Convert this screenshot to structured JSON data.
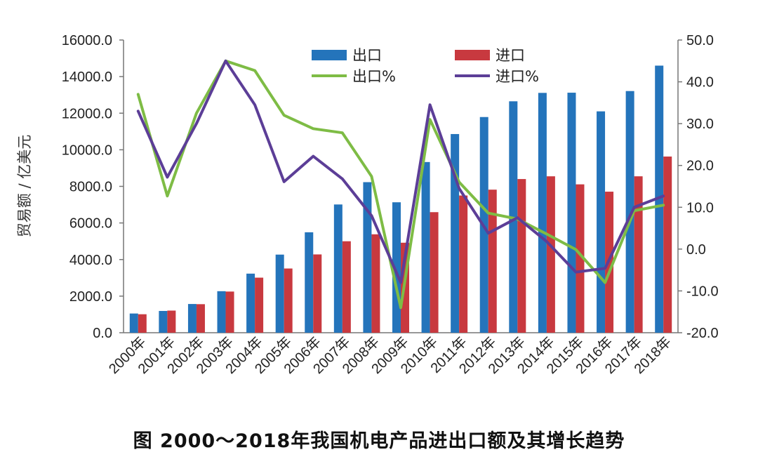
{
  "caption": "图 2000～2018年我国机电产品进出口额及其增长趋势",
  "chart_data": {
    "type": "bar",
    "categories": [
      "2000年",
      "2001年",
      "2002年",
      "2003年",
      "2004年",
      "2005年",
      "2006年",
      "2007年",
      "2008年",
      "2009年",
      "2010年",
      "2011年",
      "2012年",
      "2013年",
      "2014年",
      "2015年",
      "2016年",
      "2017年",
      "2018年"
    ],
    "ylabel": "贸易额 / 亿美元",
    "ylim": [
      0,
      16000
    ],
    "yticks": [
      "0.0",
      "2000.0",
      "4000.0",
      "6000.0",
      "8000.0",
      "10000.0",
      "12000.0",
      "14000.0",
      "16000.0"
    ],
    "y2lim": [
      -20,
      50
    ],
    "y2ticks": [
      "-20.0",
      "-10.0",
      "0.0",
      "10.0",
      "20.0",
      "30.0",
      "40.0",
      "50.0"
    ],
    "legend_position": "top",
    "series": [
      {
        "name": "出口",
        "type": "bar",
        "axis": "left",
        "color": "#2474bb",
        "values": [
          1050,
          1190,
          1570,
          2270,
          3230,
          4270,
          5490,
          7010,
          8230,
          7130,
          9330,
          10860,
          11790,
          12650,
          13110,
          13120,
          12100,
          13210,
          14600
        ]
      },
      {
        "name": "进口",
        "type": "bar",
        "axis": "left",
        "color": "#c8393f",
        "values": [
          1010,
          1210,
          1560,
          2250,
          3010,
          3510,
          4280,
          5000,
          5380,
          4920,
          6590,
          7500,
          7820,
          8400,
          8550,
          8110,
          7710,
          8550,
          9630
        ]
      },
      {
        "name": "出口%",
        "type": "line",
        "axis": "right",
        "color": "#7ebc45",
        "values": [
          37,
          12.7,
          32.5,
          45,
          42.7,
          32,
          28.8,
          27.8,
          17.4,
          -14,
          31,
          16,
          8.6,
          7.2,
          3.6,
          -0.1,
          -8,
          9.2,
          10.5
        ]
      },
      {
        "name": "进口%",
        "type": "line",
        "axis": "right",
        "color": "#5c3e97",
        "values": [
          33,
          17.2,
          30,
          45,
          34.5,
          16.1,
          22.2,
          16.8,
          8,
          -8,
          34.5,
          14.5,
          3.8,
          7.5,
          1.8,
          -5.5,
          -4.6,
          10,
          12.7
        ]
      }
    ]
  }
}
